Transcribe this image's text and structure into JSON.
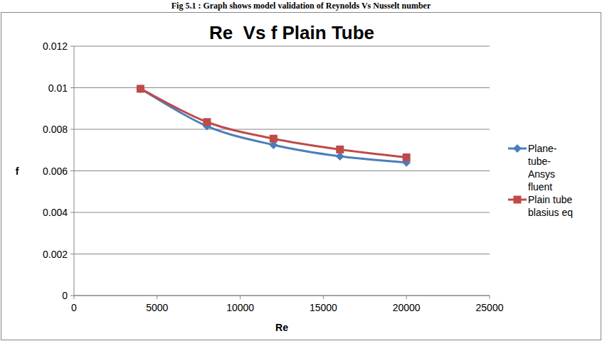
{
  "chart_data": {
    "type": "line",
    "title": "Re  Vs f Plain Tube",
    "annotations": [
      "Fig 5.1 : Graph shows model validation of Reynolds Vs Nusselt number"
    ],
    "x_label": "Re",
    "y_label": "f",
    "x": [
      4000,
      8000,
      12000,
      16000,
      20000
    ],
    "series": [
      {
        "name": "Plane-tube-Ansys fluent",
        "color": "#4a7ebb",
        "marker": "diamond",
        "line_style": "solid",
        "values": [
          0.00995,
          0.00815,
          0.00725,
          0.0067,
          0.0064
        ]
      },
      {
        "name": "Plain tube blasius eq",
        "color": "#be4b48",
        "marker": "square",
        "line_style": "solid",
        "values": [
          0.00995,
          0.00835,
          0.00755,
          0.00703,
          0.00665
        ]
      }
    ],
    "xlim": [
      0,
      25000
    ],
    "xticks": [
      0,
      5000,
      10000,
      15000,
      20000,
      25000
    ],
    "ylim": [
      0,
      0.012
    ],
    "yticks": [
      0,
      0.002,
      0.004,
      0.006,
      0.008,
      0.01,
      0.012
    ],
    "grid": true,
    "legend": "right"
  }
}
